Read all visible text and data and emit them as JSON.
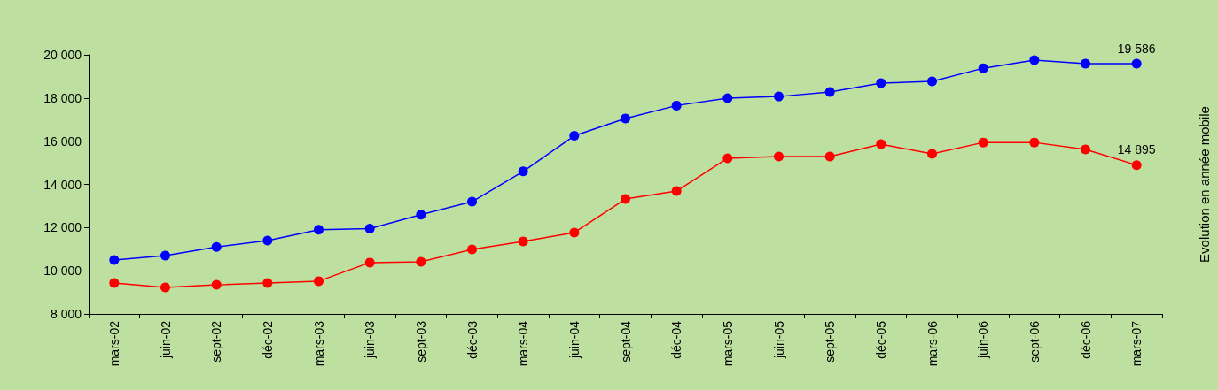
{
  "chart_data": {
    "type": "line",
    "ylabel": "Evolution en année mobile",
    "categories": [
      "mars-02",
      "juin-02",
      "sept-02",
      "déc-02",
      "mars-03",
      "juin-03",
      "sept-03",
      "déc-03",
      "mars-04",
      "juin-04",
      "sept-04",
      "déc-04",
      "mars-05",
      "juin-05",
      "sept-05",
      "déc-05",
      "mars-06",
      "juin-06",
      "sept-06",
      "déc-06",
      "mars-07"
    ],
    "series": [
      {
        "color": "#0000ff",
        "values": [
          10500,
          10700,
          11100,
          11400,
          11900,
          11950,
          12600,
          13200,
          14600,
          16250,
          17050,
          17650,
          17990,
          18070,
          18280,
          18690,
          18770,
          19380,
          19750,
          19590,
          19586
        ],
        "value_labels": [
          null,
          null,
          null,
          null,
          null,
          null,
          null,
          null,
          null,
          null,
          null,
          null,
          null,
          null,
          null,
          null,
          null,
          null,
          null,
          null,
          "19 586"
        ]
      },
      {
        "color": "#ff0000",
        "values": [
          9430,
          9230,
          9350,
          9430,
          9520,
          10380,
          10420,
          10990,
          11360,
          11770,
          13320,
          13690,
          15210,
          15290,
          15290,
          15860,
          15410,
          15940,
          15940,
          15620,
          14895
        ],
        "value_labels": [
          null,
          null,
          null,
          null,
          null,
          null,
          null,
          null,
          null,
          null,
          null,
          null,
          null,
          null,
          null,
          null,
          null,
          null,
          null,
          null,
          "14 895"
        ]
      }
    ],
    "ylim": [
      8000,
      20000
    ],
    "yticks": [
      {
        "value": 8000,
        "label": "8 000"
      },
      {
        "value": 10000,
        "label": "10 000"
      },
      {
        "value": 12000,
        "label": "12 000"
      },
      {
        "value": 14000,
        "label": "14 000"
      },
      {
        "value": 16000,
        "label": "16 000"
      },
      {
        "value": 18000,
        "label": "18 000"
      },
      {
        "value": 20000,
        "label": "20 000"
      }
    ],
    "grid": false,
    "marker": "circle",
    "line_style": "solid"
  }
}
